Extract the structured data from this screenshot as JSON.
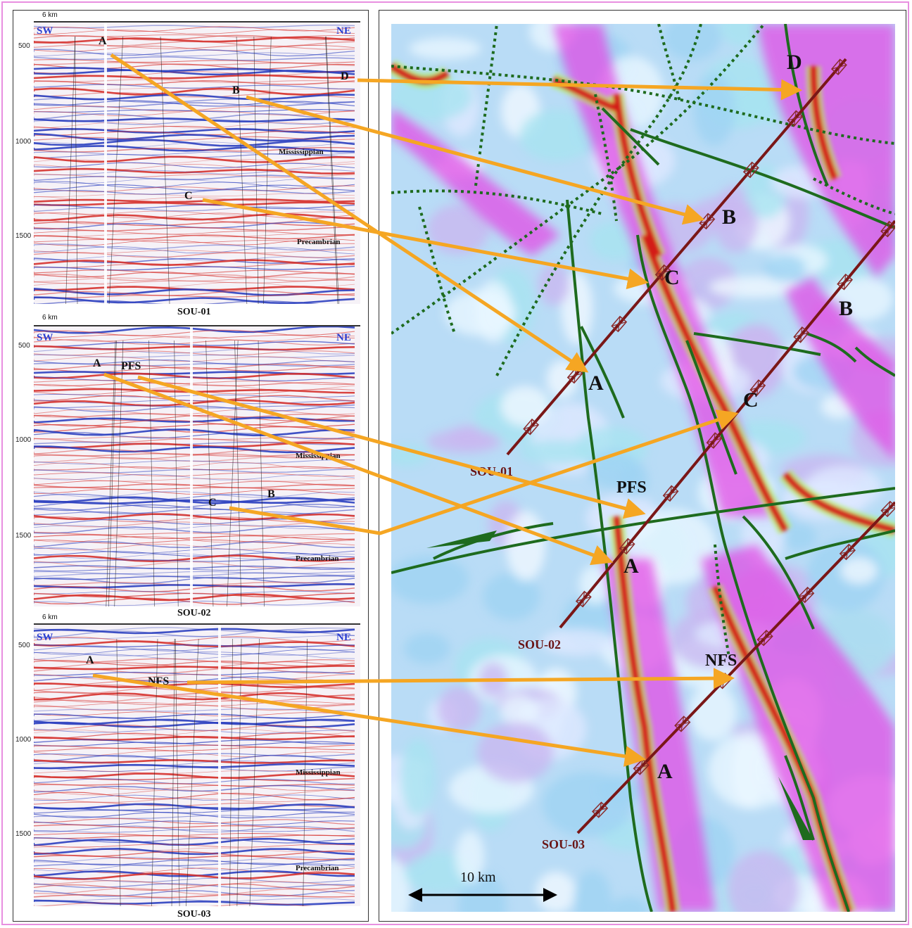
{
  "seismic_sections": [
    {
      "name": "SOU-01",
      "left_dir": "SW",
      "right_dir": "NE",
      "scale_bar": "6 km",
      "ticks": [
        "500",
        "1000",
        "1500"
      ],
      "formations": [
        "Mississippian",
        "Precambrian"
      ],
      "markers": [
        "A",
        "B",
        "C",
        "D"
      ]
    },
    {
      "name": "SOU-02",
      "left_dir": "SW",
      "right_dir": "NE",
      "scale_bar": "6 km",
      "ticks": [
        "500",
        "1000",
        "1500"
      ],
      "formations": [
        "Mississippian",
        "Precambrian"
      ],
      "markers": [
        "A",
        "PFS",
        "C",
        "B"
      ]
    },
    {
      "name": "SOU-03",
      "left_dir": "SW",
      "right_dir": "NE",
      "scale_bar": "6 km",
      "ticks": [
        "500",
        "1000",
        "1500"
      ],
      "formations": [
        "Mississippian",
        "Precambrian"
      ],
      "markers": [
        "A",
        "NFS"
      ]
    }
  ],
  "map": {
    "line_labels": [
      "SOU-01",
      "SOU-02",
      "SOU-03"
    ],
    "fault_labels": [
      "D",
      "B",
      "C",
      "B",
      "A",
      "C",
      "PFS",
      "A",
      "NFS",
      "A"
    ],
    "scale_label": "10 km"
  },
  "colors": {
    "arrow": "#f5a623",
    "fault": "#1e6b1e",
    "seismic_line": "#7a1717",
    "direction": "#2a3ed0"
  }
}
